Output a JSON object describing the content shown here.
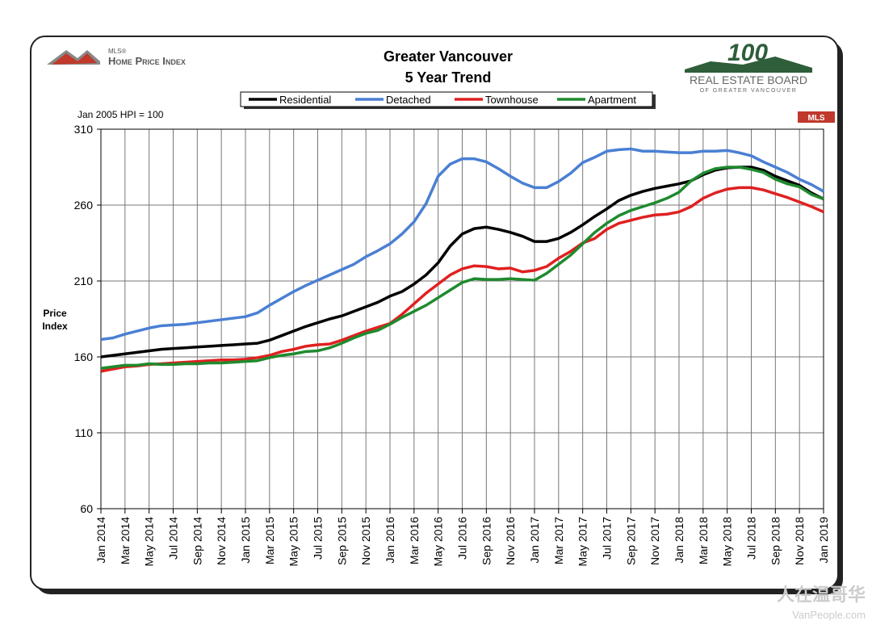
{
  "logos": {
    "mls_small": "MLS®",
    "mls_name": "Home Price Index",
    "board_number": "100",
    "board_name": "REAL ESTATE BOARD",
    "board_sub": "OF GREATER VANCOUVER",
    "mls_badge": "MLS"
  },
  "watermark": {
    "cn": "人在温哥华",
    "site": "VanPeople.com"
  },
  "chart_data": {
    "type": "line",
    "title": [
      "Greater Vancouver",
      "5 Year Trend"
    ],
    "note": "Jan 2005 HPI = 100",
    "ylabel": "Price Index",
    "categories": [
      "Jan 2014",
      null,
      "Mar 2014",
      null,
      "May 2014",
      null,
      "Jul 2014",
      null,
      "Sep 2014",
      null,
      "Nov 2014",
      null,
      "Jan 2015",
      null,
      "Mar 2015",
      null,
      "May 2015",
      null,
      "Jul 2015",
      null,
      "Sep 2015",
      null,
      "Nov 2015",
      null,
      "Jan 2016",
      null,
      "Mar 2016",
      null,
      "May 2016",
      null,
      "Jul 2016",
      null,
      "Sep 2016",
      null,
      "Nov 2016",
      null,
      "Jan 2017",
      null,
      "Mar 2017",
      null,
      "May 2017",
      null,
      "Jul 2017",
      null,
      "Sep 2017",
      null,
      "Nov 2017",
      null,
      "Jan 2018",
      null,
      "Mar 2018",
      null,
      "May 2018",
      null,
      "Jul 2018",
      null,
      "Sep 2018",
      null,
      "Nov 2018",
      null,
      "Jan 2019"
    ],
    "series": [
      {
        "name": "Residential",
        "color": "#000000",
        "values": [
          160,
          161,
          162,
          163,
          164,
          165,
          165.5,
          166,
          166.5,
          167,
          167.5,
          168,
          168.5,
          169,
          171,
          174,
          177,
          180,
          182.5,
          185,
          187,
          190,
          193,
          196,
          200,
          203,
          208,
          214,
          222,
          233,
          241,
          244.5,
          245.5,
          244,
          242,
          239.5,
          236,
          236,
          238,
          242,
          247,
          252.5,
          257.5,
          263,
          266.5,
          269,
          271,
          272.5,
          274,
          276,
          280,
          283,
          284.5,
          285,
          285,
          283,
          279,
          276,
          273,
          268,
          264
        ]
      },
      {
        "name": "Detached",
        "color": "#4a7fd4",
        "values": [
          171.5,
          172.5,
          175,
          177,
          179,
          180.5,
          181,
          181.5,
          182.5,
          183.5,
          184.5,
          185.5,
          186.5,
          189,
          194,
          198.5,
          203,
          207,
          210.5,
          214,
          217.5,
          221,
          226,
          230,
          234.5,
          241,
          249,
          261,
          279,
          287,
          290.5,
          290.5,
          288.5,
          284,
          279,
          274.5,
          271.5,
          271.5,
          275.5,
          281,
          288,
          291.5,
          295.5,
          296.5,
          297,
          295.5,
          295.5,
          295,
          294.5,
          294.5,
          295.5,
          295.5,
          296,
          294.5,
          292.5,
          288.5,
          285,
          281.5,
          277,
          273.5,
          269
        ]
      },
      {
        "name": "Townhouse",
        "color": "#e02020",
        "values": [
          150.5,
          152,
          153.5,
          154,
          155,
          155.5,
          156,
          156.5,
          157,
          157.5,
          158,
          158,
          158.5,
          159.5,
          161,
          163.5,
          165,
          167,
          168,
          168.5,
          171,
          174,
          177,
          179.5,
          182,
          188,
          195,
          202,
          208,
          214,
          218,
          220,
          219.5,
          218,
          218.5,
          216,
          217,
          219.5,
          225,
          229.5,
          235,
          238,
          244,
          248,
          250,
          252,
          253.5,
          254,
          255.5,
          259,
          264.5,
          268,
          270.5,
          271.5,
          271.5,
          270,
          267.5,
          265,
          262,
          259,
          255.5
        ]
      },
      {
        "name": "Apartment",
        "color": "#1f8a2e",
        "values": [
          152.5,
          153.5,
          154.5,
          154.5,
          155.5,
          155,
          155,
          155.5,
          155.5,
          156,
          156,
          156.5,
          157,
          157.5,
          159.5,
          161,
          162,
          163.5,
          164,
          166,
          169,
          172.5,
          175.5,
          177.5,
          181.5,
          186,
          190,
          194,
          199,
          204,
          209,
          211.5,
          211,
          211,
          211.5,
          211,
          210.5,
          215,
          221,
          227,
          234.5,
          242,
          248,
          253,
          256.5,
          259,
          261.5,
          264.5,
          268.5,
          276,
          281,
          284,
          285,
          285,
          283.5,
          281.5,
          277,
          274,
          272,
          267,
          264
        ]
      }
    ],
    "ylim": [
      60,
      310
    ],
    "yticks": [
      60,
      110,
      160,
      210,
      260,
      310
    ],
    "grid": true
  }
}
